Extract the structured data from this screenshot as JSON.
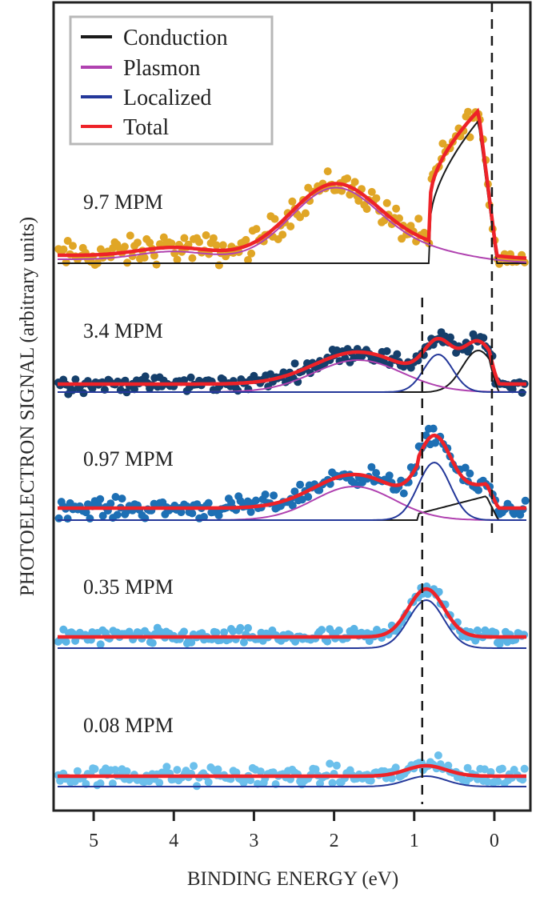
{
  "chart_data": {
    "type": "line",
    "title": "",
    "xlabel": "BINDING ENERGY (eV)",
    "ylabel": "PHOTOELECTRON SIGNAL (arbitrary units)",
    "xlim": [
      5.5,
      -0.45
    ],
    "x_reversed": true,
    "xticks": [
      5,
      4,
      3,
      2,
      1,
      0
    ],
    "xtick_labels": [
      "5",
      "4",
      "3",
      "2",
      "1",
      "0"
    ],
    "ylim": [
      0,
      1010
    ],
    "grid": false,
    "legend": {
      "placement": "top-left",
      "entries": [
        {
          "name": "Conduction",
          "color": "#1a1a1a"
        },
        {
          "name": "Plasmon",
          "color": "#b042b0"
        },
        {
          "name": "Localized",
          "color": "#24389a"
        },
        {
          "name": "Total",
          "color": "#ee2228"
        }
      ]
    },
    "reference_lines": [
      {
        "x": 0.03,
        "style": "dashed",
        "y_range": [
          338,
          1010
        ]
      },
      {
        "x": 0.9,
        "style": "dashed",
        "y_range": [
          8,
          641
        ]
      }
    ],
    "series": [
      {
        "label": "9.7 MPM",
        "offset": 684,
        "point_color": "#e0a626",
        "noise": 9,
        "components": {
          "plasmon": [
            {
              "center": 4.0,
              "amplitude": 11,
              "width": 0.45
            },
            {
              "center": 2.0,
              "amplitude": 90,
              "width": 0.55
            },
            {
              "center": 0.9,
              "amplitude": 14,
              "width": 0.6
            }
          ],
          "plasmon_background": 5,
          "conduction": {
            "onset": 0.8,
            "peak": 0.2,
            "end": 0.05,
            "amplitude": 178,
            "shape": "sqrt"
          },
          "total_offset": 5
        }
      },
      {
        "label": "3.4 MPM",
        "offset": 523,
        "point_color": "#153f6b",
        "noise": 5,
        "components": {
          "plasmon": [
            {
              "center": 1.7,
              "amplitude": 40,
              "width": 0.55
            }
          ],
          "plasmon_background": 0,
          "localized": [
            {
              "center": 0.7,
              "amplitude": 47,
              "width": 0.18
            }
          ],
          "conduction": {
            "onset": 0.9,
            "peak": 0.2,
            "end": 0.02,
            "amplitude": 52,
            "shape": "gauss"
          },
          "total_offset": 10
        }
      },
      {
        "label": "0.97 MPM",
        "offset": 363,
        "point_color": "#1d6fb4",
        "noise": 6,
        "components": {
          "plasmon": [
            {
              "center": 1.75,
              "amplitude": 42,
              "width": 0.5
            }
          ],
          "plasmon_background": 0,
          "localized": [
            {
              "center": 0.75,
              "amplitude": 72,
              "width": 0.2
            }
          ],
          "conduction": {
            "onset": 0.95,
            "peak": 0.1,
            "end": 0.03,
            "amplitude": 30,
            "start_level": 8,
            "shape": "ramp"
          },
          "total_offset": 15
        }
      },
      {
        "label": "0.35 MPM",
        "offset": 203,
        "point_color": "#5ab4e6",
        "noise": 5,
        "components": {
          "localized": [
            {
              "center": 0.85,
              "amplitude": 60,
              "width": 0.22
            }
          ],
          "total_offset": 14
        }
      },
      {
        "label": "0.08 MPM",
        "offset": 30,
        "point_color": "#6cc0ec",
        "noise": 6,
        "components": {
          "localized": [
            {
              "center": 0.85,
              "amplitude": 13,
              "width": 0.25
            }
          ],
          "total_offset": 13
        }
      }
    ]
  }
}
